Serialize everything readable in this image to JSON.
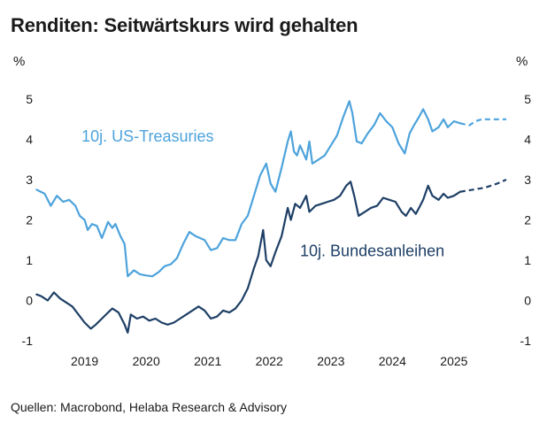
{
  "title": "Renditen: Seitwärtskurs wird gehalten",
  "source": "Quellen: Macrobond, Helaba Research & Advisory",
  "chart_data": {
    "type": "line",
    "y_unit_left": "%",
    "y_unit_right": "%",
    "ylim": [
      -1,
      5
    ],
    "yticks": [
      "-1",
      "0",
      "1",
      "2",
      "3",
      "4",
      "5"
    ],
    "xlim": [
      2018.7,
      2026.0
    ],
    "xticks": [
      "2019",
      "2020",
      "2021",
      "2022",
      "2023",
      "2024",
      "2025"
    ],
    "grid": false,
    "series": [
      {
        "name": "10j. US-Treasuries",
        "color": "#4da3dc",
        "values": [
          [
            2018.72,
            2.75
          ],
          [
            2018.85,
            2.65
          ],
          [
            2018.95,
            2.35
          ],
          [
            2019.05,
            2.6
          ],
          [
            2019.15,
            2.45
          ],
          [
            2019.25,
            2.5
          ],
          [
            2019.35,
            2.35
          ],
          [
            2019.42,
            2.1
          ],
          [
            2019.5,
            2.0
          ],
          [
            2019.55,
            1.75
          ],
          [
            2019.62,
            1.9
          ],
          [
            2019.7,
            1.85
          ],
          [
            2019.78,
            1.55
          ],
          [
            2019.88,
            1.95
          ],
          [
            2019.95,
            1.8
          ],
          [
            2020.0,
            1.9
          ],
          [
            2020.08,
            1.6
          ],
          [
            2020.15,
            1.4
          ],
          [
            2020.2,
            0.6
          ],
          [
            2020.3,
            0.75
          ],
          [
            2020.4,
            0.65
          ],
          [
            2020.5,
            0.62
          ],
          [
            2020.6,
            0.6
          ],
          [
            2020.7,
            0.7
          ],
          [
            2020.8,
            0.85
          ],
          [
            2020.9,
            0.9
          ],
          [
            2021.0,
            1.05
          ],
          [
            2021.1,
            1.4
          ],
          [
            2021.2,
            1.7
          ],
          [
            2021.3,
            1.6
          ],
          [
            2021.45,
            1.5
          ],
          [
            2021.55,
            1.25
          ],
          [
            2021.65,
            1.3
          ],
          [
            2021.75,
            1.55
          ],
          [
            2021.85,
            1.5
          ],
          [
            2021.95,
            1.5
          ],
          [
            2022.05,
            1.9
          ],
          [
            2022.15,
            2.1
          ],
          [
            2022.25,
            2.6
          ],
          [
            2022.35,
            3.1
          ],
          [
            2022.45,
            3.4
          ],
          [
            2022.52,
            2.9
          ],
          [
            2022.6,
            2.7
          ],
          [
            2022.7,
            3.3
          ],
          [
            2022.8,
            3.95
          ],
          [
            2022.85,
            4.2
          ],
          [
            2022.9,
            3.7
          ],
          [
            2022.95,
            3.6
          ],
          [
            2023.0,
            3.85
          ],
          [
            2023.1,
            3.5
          ],
          [
            2023.15,
            3.95
          ],
          [
            2023.2,
            3.4
          ],
          [
            2023.3,
            3.5
          ],
          [
            2023.4,
            3.6
          ],
          [
            2023.5,
            3.85
          ],
          [
            2023.6,
            4.1
          ],
          [
            2023.7,
            4.55
          ],
          [
            2023.8,
            4.95
          ],
          [
            2023.85,
            4.65
          ],
          [
            2023.92,
            3.95
          ],
          [
            2024.0,
            3.9
          ],
          [
            2024.1,
            4.15
          ],
          [
            2024.2,
            4.35
          ],
          [
            2024.3,
            4.65
          ],
          [
            2024.4,
            4.45
          ],
          [
            2024.5,
            4.3
          ],
          [
            2024.6,
            3.9
          ],
          [
            2024.7,
            3.65
          ],
          [
            2024.78,
            4.15
          ],
          [
            2024.85,
            4.35
          ],
          [
            2024.93,
            4.55
          ],
          [
            2025.0,
            4.75
          ],
          [
            2025.08,
            4.5
          ],
          [
            2025.15,
            4.2
          ],
          [
            2025.25,
            4.3
          ],
          [
            2025.33,
            4.5
          ],
          [
            2025.4,
            4.3
          ],
          [
            2025.5,
            4.45
          ],
          [
            2025.6,
            4.4
          ]
        ],
        "forecast": [
          [
            2025.6,
            4.4
          ],
          [
            2025.75,
            4.35
          ],
          [
            2025.85,
            4.45
          ],
          [
            2025.95,
            4.5
          ],
          [
            2026.35,
            4.5
          ]
        ]
      },
      {
        "name": "10j. Bundesanleihen",
        "color": "#1e3f66",
        "values": [
          [
            2018.72,
            0.15
          ],
          [
            2018.8,
            0.1
          ],
          [
            2018.9,
            0.0
          ],
          [
            2019.0,
            0.2
          ],
          [
            2019.1,
            0.05
          ],
          [
            2019.2,
            -0.05
          ],
          [
            2019.3,
            -0.15
          ],
          [
            2019.4,
            -0.35
          ],
          [
            2019.5,
            -0.55
          ],
          [
            2019.6,
            -0.7
          ],
          [
            2019.68,
            -0.6
          ],
          [
            2019.78,
            -0.45
          ],
          [
            2019.88,
            -0.3
          ],
          [
            2019.95,
            -0.2
          ],
          [
            2020.05,
            -0.3
          ],
          [
            2020.15,
            -0.6
          ],
          [
            2020.2,
            -0.8
          ],
          [
            2020.25,
            -0.35
          ],
          [
            2020.35,
            -0.45
          ],
          [
            2020.45,
            -0.4
          ],
          [
            2020.55,
            -0.5
          ],
          [
            2020.65,
            -0.45
          ],
          [
            2020.75,
            -0.55
          ],
          [
            2020.85,
            -0.6
          ],
          [
            2020.95,
            -0.55
          ],
          [
            2021.05,
            -0.45
          ],
          [
            2021.15,
            -0.35
          ],
          [
            2021.25,
            -0.25
          ],
          [
            2021.35,
            -0.15
          ],
          [
            2021.45,
            -0.25
          ],
          [
            2021.55,
            -0.45
          ],
          [
            2021.65,
            -0.4
          ],
          [
            2021.75,
            -0.25
          ],
          [
            2021.85,
            -0.3
          ],
          [
            2021.95,
            -0.2
          ],
          [
            2022.05,
            0.0
          ],
          [
            2022.15,
            0.3
          ],
          [
            2022.25,
            0.8
          ],
          [
            2022.32,
            1.1
          ],
          [
            2022.4,
            1.75
          ],
          [
            2022.45,
            1.0
          ],
          [
            2022.52,
            0.85
          ],
          [
            2022.6,
            1.2
          ],
          [
            2022.7,
            1.6
          ],
          [
            2022.8,
            2.3
          ],
          [
            2022.85,
            2.0
          ],
          [
            2022.92,
            2.4
          ],
          [
            2023.0,
            2.3
          ],
          [
            2023.1,
            2.6
          ],
          [
            2023.15,
            2.2
          ],
          [
            2023.25,
            2.35
          ],
          [
            2023.35,
            2.4
          ],
          [
            2023.45,
            2.45
          ],
          [
            2023.55,
            2.5
          ],
          [
            2023.65,
            2.6
          ],
          [
            2023.75,
            2.85
          ],
          [
            2023.82,
            2.95
          ],
          [
            2023.88,
            2.6
          ],
          [
            2023.95,
            2.1
          ],
          [
            2024.05,
            2.2
          ],
          [
            2024.15,
            2.3
          ],
          [
            2024.25,
            2.35
          ],
          [
            2024.35,
            2.55
          ],
          [
            2024.45,
            2.5
          ],
          [
            2024.55,
            2.45
          ],
          [
            2024.65,
            2.2
          ],
          [
            2024.72,
            2.1
          ],
          [
            2024.8,
            2.3
          ],
          [
            2024.88,
            2.15
          ],
          [
            2024.95,
            2.35
          ],
          [
            2025.0,
            2.5
          ],
          [
            2025.08,
            2.85
          ],
          [
            2025.15,
            2.6
          ],
          [
            2025.25,
            2.5
          ],
          [
            2025.33,
            2.65
          ],
          [
            2025.4,
            2.55
          ],
          [
            2025.5,
            2.6
          ],
          [
            2025.6,
            2.7
          ]
        ],
        "forecast": [
          [
            2025.6,
            2.7
          ],
          [
            2025.8,
            2.75
          ],
          [
            2026.0,
            2.8
          ],
          [
            2026.2,
            2.9
          ],
          [
            2026.35,
            3.0
          ]
        ]
      }
    ],
    "annotations": [
      {
        "text": "10j. US-Treasuries",
        "x": 2019.45,
        "y": 3.95,
        "color": "#4da3dc"
      },
      {
        "text": "10j. Bundesanleihen",
        "x": 2023.0,
        "y": 1.1,
        "color": "#1e3f66"
      }
    ]
  }
}
